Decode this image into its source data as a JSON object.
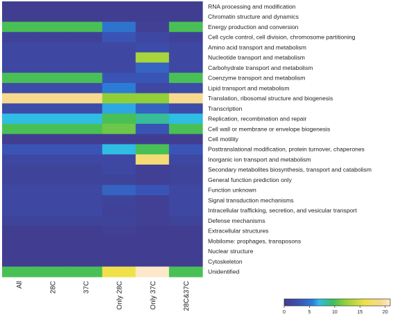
{
  "chart_data": {
    "type": "heatmap",
    "title": "",
    "xlabel": "",
    "ylabel": "",
    "columns": [
      "All",
      "28C",
      "37C",
      "Only 28C",
      "Only 37C",
      "28C&37C"
    ],
    "rows": [
      "RNA processing and modification",
      "Chromatin structure and dynamics",
      "Energy production and conversion",
      "Cell cycle control, cell division, chromosome partitioning",
      "Amino acid transport and metabolism",
      "Nucleotide transport and metabolism",
      "Carbohydrate transport and metabolism",
      "Coenzyme transport and metabolism",
      "Lipid transport and metabolism",
      "Translation, ribosomal structure and biogenesis",
      "Transcription",
      "Replication, recombination and repair",
      "Cell wall or membrane or envelope biogenesis",
      "Cell motility",
      "Posttranslational modification, protein turnover, chaperones",
      "Inorganic ion transport and metabolism",
      "Secondary metabolites biosynthesis, transport and catabolism",
      "General function prediction only",
      "Function unknown",
      "Signal transduction mechanisms",
      "Intracellular trafficking, secretion, and vesicular transport",
      "Defense mechanisms",
      "Extracellular structures",
      "Mobilome: prophages, transposons",
      "Nuclear structure",
      "Cytoskeleton",
      "Unidentified"
    ],
    "values": [
      [
        0.3,
        0.3,
        0.3,
        0.3,
        0.3,
        0.3
      ],
      [
        0.3,
        0.3,
        0.3,
        0.3,
        0.3,
        0.3
      ],
      [
        10,
        10,
        10,
        5,
        0.5,
        10
      ],
      [
        0.8,
        0.8,
        0.8,
        3,
        1.5,
        0.8
      ],
      [
        1.5,
        1.5,
        1.5,
        1.5,
        2,
        1.5
      ],
      [
        1.5,
        1.5,
        1.5,
        1.5,
        13,
        1.5
      ],
      [
        1.5,
        1.5,
        1.5,
        1.5,
        4,
        1.5
      ],
      [
        10,
        10,
        10,
        3,
        3,
        10
      ],
      [
        2,
        2,
        2,
        5.5,
        1.5,
        2
      ],
      [
        19,
        19,
        19,
        12,
        12,
        19
      ],
      [
        2,
        2,
        2,
        6.5,
        4,
        2
      ],
      [
        7,
        7,
        7,
        10,
        8.5,
        7
      ],
      [
        10,
        10,
        10,
        11,
        3,
        10
      ],
      [
        0.3,
        0.3,
        0.3,
        0.3,
        0.3,
        0.3
      ],
      [
        3,
        3,
        3,
        7,
        10,
        3
      ],
      [
        1.5,
        1.5,
        1.5,
        1.5,
        18,
        1.5
      ],
      [
        1,
        1,
        1,
        1.5,
        0.5,
        1
      ],
      [
        1,
        1,
        1,
        1,
        0.5,
        1
      ],
      [
        1.5,
        1.5,
        1.5,
        4,
        3,
        1.5
      ],
      [
        1.5,
        1.5,
        1.5,
        1,
        0.5,
        1.5
      ],
      [
        1.5,
        1.5,
        1.5,
        0.8,
        0.5,
        1.5
      ],
      [
        1,
        1,
        1,
        1,
        0.5,
        1
      ],
      [
        0.3,
        0.3,
        0.3,
        0.5,
        0.3,
        0.3
      ],
      [
        0.3,
        0.3,
        0.3,
        0.3,
        0.3,
        0.3
      ],
      [
        0.3,
        0.3,
        0.3,
        0.3,
        0.3,
        0.3
      ],
      [
        0.3,
        0.3,
        0.3,
        0.3,
        0.3,
        0.3
      ],
      [
        10,
        10,
        10,
        16,
        21,
        10
      ]
    ],
    "colorbar": {
      "min": 0,
      "max": 21,
      "ticks": [
        0,
        5,
        10,
        15,
        20
      ],
      "colors": [
        "#423c8e",
        "#3a55b8",
        "#2a7fd6",
        "#2fbde8",
        "#3dbd5b",
        "#8fcf3a",
        "#f0e14a",
        "#f7d98a",
        "#fde9c9"
      ],
      "stops": [
        0,
        0.15,
        0.27,
        0.33,
        0.46,
        0.57,
        0.76,
        0.9,
        1
      ]
    },
    "grid": false,
    "legend": "bottom-right"
  }
}
